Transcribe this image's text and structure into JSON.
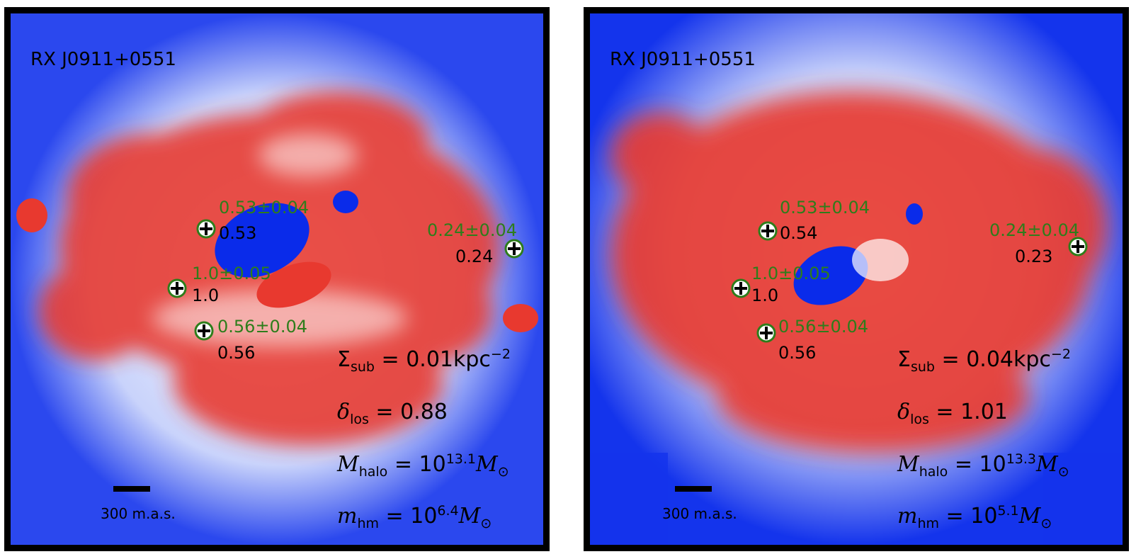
{
  "panels": [
    {
      "title": "RX J0911+0551",
      "images": [
        {
          "observed": "0.53±0.04",
          "model": "0.53"
        },
        {
          "observed": "0.24±0.04",
          "model": "0.24"
        },
        {
          "observed": "1.0±0.05",
          "model": "1.0"
        },
        {
          "observed": "0.56±0.04",
          "model": "0.56"
        }
      ],
      "params": {
        "sigma_sub": {
          "symbol": "Σ",
          "sub": "sub",
          "value": "0.01",
          "unit": "kpc",
          "exp": "−2"
        },
        "delta_los": {
          "symbol": "δ",
          "sub": "los",
          "value": "0.88"
        },
        "m_halo": {
          "symbol": "M",
          "sub": "halo",
          "base": "10",
          "exp": "13.1",
          "unit": "M",
          "unit_sub": "⊙"
        },
        "m_hm": {
          "symbol": "m",
          "sub": "hm",
          "base": "10",
          "exp": "6.4",
          "unit": "M",
          "unit_sub": "⊙"
        }
      },
      "scalebar": "300 m.a.s."
    },
    {
      "title": "RX J0911+0551",
      "images": [
        {
          "observed": "0.53±0.04",
          "model": "0.54"
        },
        {
          "observed": "0.24±0.04",
          "model": "0.23"
        },
        {
          "observed": "1.0±0.05",
          "model": "1.0"
        },
        {
          "observed": "0.56±0.04",
          "model": "0.56"
        }
      ],
      "params": {
        "sigma_sub": {
          "symbol": "Σ",
          "sub": "sub",
          "value": "0.04",
          "unit": "kpc",
          "exp": "−2"
        },
        "delta_los": {
          "symbol": "δ",
          "sub": "los",
          "value": "1.01"
        },
        "m_halo": {
          "symbol": "M",
          "sub": "halo",
          "base": "10",
          "exp": "13.3",
          "unit": "M",
          "unit_sub": "⊙"
        },
        "m_hm": {
          "symbol": "m",
          "sub": "hm",
          "base": "10",
          "exp": "5.1",
          "unit": "M",
          "unit_sub": "⊙"
        }
      },
      "scalebar": "300 m.a.s."
    }
  ],
  "colors": {
    "negative": "#0a2bea",
    "positive": "#e8392f",
    "neutral": "#ffffff",
    "marker": "#2e7d1b",
    "frame": "#000000"
  }
}
